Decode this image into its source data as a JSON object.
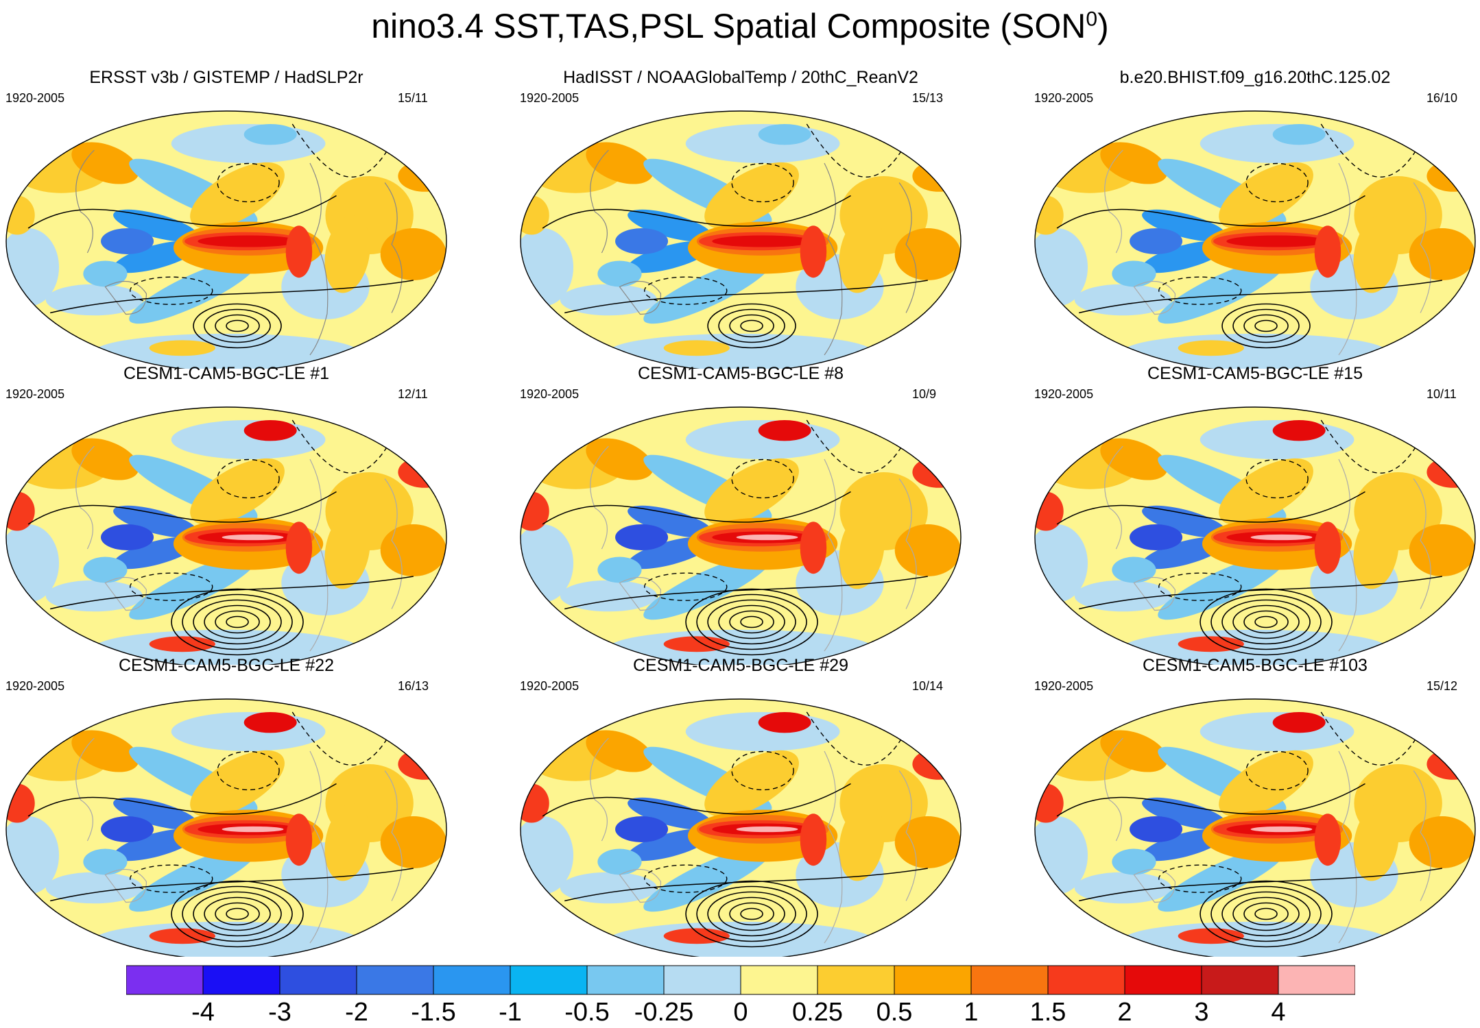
{
  "title": {
    "text": "nino3.4 SST,TAS,PSL Spatial Composite (SON",
    "sup": "0",
    "close": ")"
  },
  "panels": [
    {
      "title": "ERSST v3b / GISTEMP / HadSLP2r",
      "period": "1920-2005",
      "count": "15/11"
    },
    {
      "title": "HadISST / NOAAGlobalTemp / 20thC_ReanV2",
      "period": "1920-2005",
      "count": "15/13"
    },
    {
      "title": "b.e20.BHIST.f09_g16.20thC.125.02",
      "period": "1920-2005",
      "count": "16/10"
    },
    {
      "title": "CESM1-CAM5-BGC-LE #1",
      "period": "1920-2005",
      "count": "12/11"
    },
    {
      "title": "CESM1-CAM5-BGC-LE #8",
      "period": "1920-2005",
      "count": "10/9"
    },
    {
      "title": "CESM1-CAM5-BGC-LE #15",
      "period": "1920-2005",
      "count": "10/11"
    },
    {
      "title": "CESM1-CAM5-BGC-LE #22",
      "period": "1920-2005",
      "count": "16/13"
    },
    {
      "title": "CESM1-CAM5-BGC-LE #29",
      "period": "1920-2005",
      "count": "10/14"
    },
    {
      "title": "CESM1-CAM5-BGC-LE #103",
      "period": "1920-2005",
      "count": "15/12"
    }
  ],
  "colorbar": {
    "labels": [
      "-4",
      "-3",
      "-2",
      "-1.5",
      "-1",
      "-0.5",
      "-0.25",
      "0",
      "0.25",
      "0.5",
      "1",
      "1.5",
      "2",
      "3",
      "4"
    ],
    "colors": [
      "#7b2ff0",
      "#1a0ff5",
      "#2e4fe0",
      "#3a78e6",
      "#2a96f0",
      "#0ab4f2",
      "#78c8f0",
      "#b6dcf2",
      "#fdf590",
      "#fccd30",
      "#fba500",
      "#f87510",
      "#f63a1c",
      "#e50a0a",
      "#c81a1a",
      "#fcb4b4"
    ]
  }
}
